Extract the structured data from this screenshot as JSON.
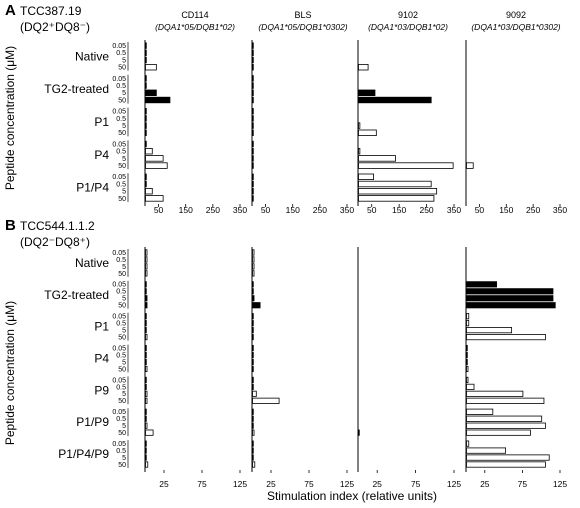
{
  "chart_data": {
    "type": "bar",
    "xlabel": "Stimulation index (relative units)",
    "ylabel": "Peptide concentration (μM)",
    "concentrations": [
      "0.05",
      "0.5",
      "5",
      "50"
    ],
    "cell_lines": [
      {
        "name": "CD114",
        "genotype": "(DQA1*05/DQB1*02)"
      },
      {
        "name": "BLS",
        "genotype": "(DQA1*05/DQB1*0302)"
      },
      {
        "name": "9102",
        "genotype": "(DQA1*03/DQB1*02)"
      },
      {
        "name": "9092",
        "genotype": "(DQA1*03/DQB1*0302)"
      }
    ],
    "panels": [
      {
        "letter": "A",
        "clone": "TCC387.19",
        "phenotype": "(DQ2⁺DQ8⁻)",
        "xlim": [
          0,
          350
        ],
        "xticks": [
          "50",
          "150",
          "250",
          "350"
        ],
        "groups": [
          {
            "label": "Native",
            "filled": false,
            "values": [
              [
                1,
                1,
                2,
                40
              ],
              [
                1,
                1,
                1,
                1
              ],
              [
                0,
                0,
                0,
                35
              ],
              [
                0,
                0,
                0,
                0
              ]
            ]
          },
          {
            "label": "TG2-treated",
            "filled": true,
            "values": [
              [
                1,
                2,
                40,
                90
              ],
              [
                1,
                1,
                1,
                2
              ],
              [
                0,
                0,
                60,
                265
              ],
              [
                0,
                0,
                0,
                0
              ]
            ]
          },
          {
            "label": "P1",
            "filled": false,
            "values": [
              [
                1,
                1,
                1,
                1
              ],
              [
                1,
                1,
                1,
                1
              ],
              [
                0,
                0,
                5,
                65
              ],
              [
                0,
                0,
                0,
                0
              ]
            ]
          },
          {
            "label": "P4",
            "filled": false,
            "values": [
              [
                1,
                25,
                65,
                80
              ],
              [
                1,
                1,
                1,
                1
              ],
              [
                0,
                5,
                135,
                345
              ],
              [
                0,
                0,
                0,
                25
              ]
            ]
          },
          {
            "label": "P1/P4",
            "filled": false,
            "values": [
              [
                1,
                2,
                25,
                65
              ],
              [
                1,
                1,
                1,
                1
              ],
              [
                55,
                265,
                285,
                275
              ],
              [
                0,
                0,
                0,
                0
              ]
            ]
          }
        ]
      },
      {
        "letter": "B",
        "clone": "TCC544.1.1.2",
        "phenotype": "(DQ2⁻DQ8⁺)",
        "xlim": [
          0,
          125
        ],
        "xticks": [
          "25",
          "75",
          "125"
        ],
        "groups": [
          {
            "label": "Native",
            "filled": false,
            "values": [
              [
                2,
                2,
                2,
                2
              ],
              [
                2,
                2,
                2,
                2
              ],
              [
                0,
                0,
                0,
                0
              ],
              [
                0,
                0,
                0,
                0
              ]
            ]
          },
          {
            "label": "TG2-treated",
            "filled": true,
            "values": [
              [
                1,
                1,
                2,
                2
              ],
              [
                1,
                1,
                2,
                10
              ],
              [
                0,
                0,
                0,
                0
              ],
              [
                40,
                115,
                115,
                118
              ]
            ]
          },
          {
            "label": "P1",
            "filled": false,
            "values": [
              [
                1,
                1,
                1,
                2
              ],
              [
                1,
                1,
                1,
                1
              ],
              [
                0,
                0,
                0,
                0
              ],
              [
                3,
                3,
                60,
                105
              ]
            ]
          },
          {
            "label": "P4",
            "filled": false,
            "values": [
              [
                1,
                1,
                1,
                2
              ],
              [
                1,
                1,
                1,
                1
              ],
              [
                0,
                0,
                0,
                0
              ],
              [
                1,
                1,
                1,
                2
              ]
            ]
          },
          {
            "label": "P9",
            "filled": false,
            "values": [
              [
                1,
                1,
                2,
                2
              ],
              [
                1,
                1,
                5,
                35
              ],
              [
                0,
                0,
                0,
                0
              ],
              [
                2,
                10,
                75,
                103
              ]
            ]
          },
          {
            "label": "P1/P9",
            "filled": false,
            "values": [
              [
                1,
                1,
                2,
                10
              ],
              [
                1,
                1,
                1,
                2
              ],
              [
                0,
                0,
                0,
                1
              ],
              [
                35,
                100,
                105,
                85
              ]
            ]
          },
          {
            "label": "P1/P4/P9",
            "filled": false,
            "values": [
              [
                1,
                1,
                1,
                3
              ],
              [
                1,
                1,
                1,
                3
              ],
              [
                0,
                0,
                0,
                0
              ],
              [
                3,
                52,
                110,
                105
              ]
            ]
          }
        ]
      }
    ]
  }
}
